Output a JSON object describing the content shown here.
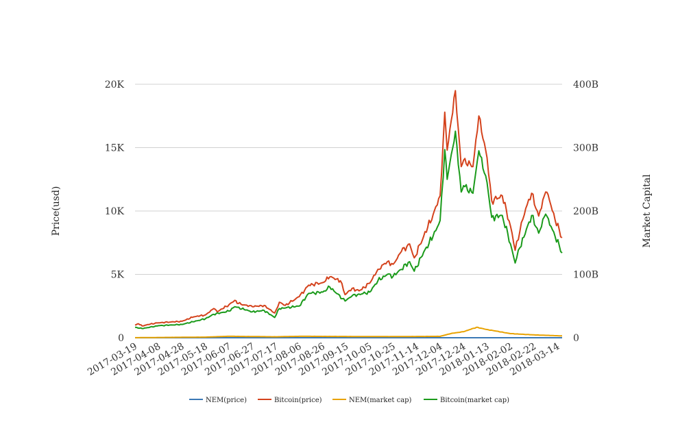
{
  "chart_data": {
    "type": "line",
    "title": "",
    "ylabel_left": "Price(usd)",
    "ylabel_right": "Market Capital",
    "x_start": "2017-03-19",
    "x_end": "2018-03-18",
    "x_ticks": [
      "2017-03-19",
      "2017-04-08",
      "2017-04-28",
      "2017-05-18",
      "2017-06-07",
      "2017-06-27",
      "2017-07-17",
      "2017-08-06",
      "2017-08-26",
      "2017-09-15",
      "2017-10-05",
      "2017-10-25",
      "2017-11-14",
      "2017-12-04",
      "2017-12-24",
      "2018-01-13",
      "2018-02-02",
      "2018-02-22",
      "2018-03-14"
    ],
    "y_left_ticks": [
      {
        "value": 0,
        "label": "0"
      },
      {
        "value": 5000,
        "label": "5K"
      },
      {
        "value": 10000,
        "label": "10K"
      },
      {
        "value": 15000,
        "label": "15K"
      },
      {
        "value": 20000,
        "label": "20K"
      }
    ],
    "y_right_ticks": [
      {
        "value": 0,
        "label": "0"
      },
      {
        "value": 100000000000,
        "label": "100B"
      },
      {
        "value": 200000000000,
        "label": "200B"
      },
      {
        "value": 300000000000,
        "label": "300B"
      },
      {
        "value": 400000000000,
        "label": "400B"
      }
    ],
    "ylim_left": [
      0,
      20000
    ],
    "ylim_right": [
      0,
      400000000000
    ],
    "grid": true,
    "legend_position": "bottom",
    "series": [
      {
        "name": "NEM(price)",
        "axis": "left",
        "color": "#3a78b5",
        "points": [
          [
            "2017-03-19",
            0.01
          ],
          [
            "2017-05-18",
            0.1
          ],
          [
            "2017-06-07",
            0.25
          ],
          [
            "2017-08-06",
            0.25
          ],
          [
            "2017-10-25",
            0.2
          ],
          [
            "2017-12-04",
            0.3
          ],
          [
            "2018-01-04",
            1.9
          ],
          [
            "2018-02-02",
            0.6
          ],
          [
            "2018-03-18",
            0.32
          ]
        ]
      },
      {
        "name": "Bitcoin(price)",
        "axis": "left",
        "color": "#d4421c",
        "points": [
          [
            "2017-03-19",
            1000
          ],
          [
            "2017-03-22",
            1100
          ],
          [
            "2017-03-25",
            930
          ],
          [
            "2017-04-01",
            1080
          ],
          [
            "2017-04-08",
            1180
          ],
          [
            "2017-04-28",
            1300
          ],
          [
            "2017-05-08",
            1650
          ],
          [
            "2017-05-18",
            1800
          ],
          [
            "2017-05-25",
            2300
          ],
          [
            "2017-05-28",
            2050
          ],
          [
            "2017-06-07",
            2600
          ],
          [
            "2017-06-12",
            2950
          ],
          [
            "2017-06-15",
            2700
          ],
          [
            "2017-06-27",
            2450
          ],
          [
            "2017-07-07",
            2550
          ],
          [
            "2017-07-16",
            1950
          ],
          [
            "2017-07-20",
            2800
          ],
          [
            "2017-07-25",
            2550
          ],
          [
            "2017-08-06",
            3250
          ],
          [
            "2017-08-14",
            4150
          ],
          [
            "2017-08-26",
            4350
          ],
          [
            "2017-09-01",
            4800
          ],
          [
            "2017-09-10",
            4500
          ],
          [
            "2017-09-14",
            3400
          ],
          [
            "2017-09-20",
            3900
          ],
          [
            "2017-09-26",
            3700
          ],
          [
            "2017-10-05",
            4300
          ],
          [
            "2017-10-12",
            5400
          ],
          [
            "2017-10-20",
            6000
          ],
          [
            "2017-10-25",
            5800
          ],
          [
            "2017-11-01",
            6800
          ],
          [
            "2017-11-08",
            7400
          ],
          [
            "2017-11-12",
            6300
          ],
          [
            "2017-11-20",
            8000
          ],
          [
            "2017-11-28",
            9700
          ],
          [
            "2017-12-04",
            11200
          ],
          [
            "2017-12-08",
            17800
          ],
          [
            "2017-12-10",
            14800
          ],
          [
            "2017-12-17",
            19500
          ],
          [
            "2017-12-22",
            13500
          ],
          [
            "2017-12-24",
            14000
          ],
          [
            "2018-01-01",
            13500
          ],
          [
            "2018-01-06",
            17500
          ],
          [
            "2018-01-13",
            14200
          ],
          [
            "2018-01-17",
            10800
          ],
          [
            "2018-01-26",
            11200
          ],
          [
            "2018-02-02",
            8800
          ],
          [
            "2018-02-06",
            6900
          ],
          [
            "2018-02-10",
            8400
          ],
          [
            "2018-02-15",
            10200
          ],
          [
            "2018-02-20",
            11400
          ],
          [
            "2018-02-26",
            9600
          ],
          [
            "2018-03-04",
            11500
          ],
          [
            "2018-03-06",
            11300
          ],
          [
            "2018-03-12",
            9300
          ],
          [
            "2018-03-18",
            7900
          ]
        ]
      },
      {
        "name": "NEM(market cap)",
        "axis": "right",
        "color": "#e8a200",
        "points": [
          [
            "2017-03-19",
            100000000
          ],
          [
            "2017-05-18",
            1000000000
          ],
          [
            "2017-06-07",
            2300000000
          ],
          [
            "2017-07-17",
            1500000000
          ],
          [
            "2017-08-06",
            2300000000
          ],
          [
            "2017-09-15",
            2000000000
          ],
          [
            "2017-10-25",
            1800000000
          ],
          [
            "2017-12-04",
            2200000000
          ],
          [
            "2017-12-14",
            7000000000
          ],
          [
            "2017-12-24",
            9500000000
          ],
          [
            "2018-01-04",
            16500000000
          ],
          [
            "2018-01-13",
            13000000000
          ],
          [
            "2018-02-02",
            6500000000
          ],
          [
            "2018-02-22",
            4500000000
          ],
          [
            "2018-03-18",
            2900000000
          ]
        ]
      },
      {
        "name": "Bitcoin(market cap)",
        "axis": "right",
        "color": "#1a9a1a",
        "points": [
          [
            "2017-03-19",
            16500000000
          ],
          [
            "2017-03-25",
            14500000000
          ],
          [
            "2017-04-08",
            19000000000
          ],
          [
            "2017-04-28",
            21000000000
          ],
          [
            "2017-05-18",
            30000000000
          ],
          [
            "2017-05-25",
            37000000000
          ],
          [
            "2017-06-07",
            42000000000
          ],
          [
            "2017-06-12",
            49000000000
          ],
          [
            "2017-06-27",
            41000000000
          ],
          [
            "2017-07-07",
            43000000000
          ],
          [
            "2017-07-16",
            32000000000
          ],
          [
            "2017-07-20",
            46000000000
          ],
          [
            "2017-08-06",
            50000000000
          ],
          [
            "2017-08-14",
            70000000000
          ],
          [
            "2017-08-26",
            72000000000
          ],
          [
            "2017-09-01",
            80000000000
          ],
          [
            "2017-09-14",
            58000000000
          ],
          [
            "2017-09-20",
            66000000000
          ],
          [
            "2017-10-05",
            72000000000
          ],
          [
            "2017-10-12",
            90000000000
          ],
          [
            "2017-10-20",
            100000000000
          ],
          [
            "2017-10-25",
            97000000000
          ],
          [
            "2017-11-08",
            120000000000
          ],
          [
            "2017-11-12",
            105000000000
          ],
          [
            "2017-11-20",
            135000000000
          ],
          [
            "2017-11-28",
            160000000000
          ],
          [
            "2017-12-04",
            185000000000
          ],
          [
            "2017-12-08",
            297000000000
          ],
          [
            "2017-12-10",
            250000000000
          ],
          [
            "2017-12-17",
            326000000000
          ],
          [
            "2017-12-22",
            230000000000
          ],
          [
            "2017-12-24",
            240000000000
          ],
          [
            "2018-01-01",
            228000000000
          ],
          [
            "2018-01-06",
            295000000000
          ],
          [
            "2018-01-13",
            245000000000
          ],
          [
            "2018-01-17",
            190000000000
          ],
          [
            "2018-01-26",
            193000000000
          ],
          [
            "2018-02-02",
            148000000000
          ],
          [
            "2018-02-06",
            118000000000
          ],
          [
            "2018-02-10",
            142000000000
          ],
          [
            "2018-02-20",
            193000000000
          ],
          [
            "2018-02-26",
            165000000000
          ],
          [
            "2018-03-04",
            195000000000
          ],
          [
            "2018-03-12",
            160000000000
          ],
          [
            "2018-03-18",
            134000000000
          ]
        ]
      }
    ]
  }
}
